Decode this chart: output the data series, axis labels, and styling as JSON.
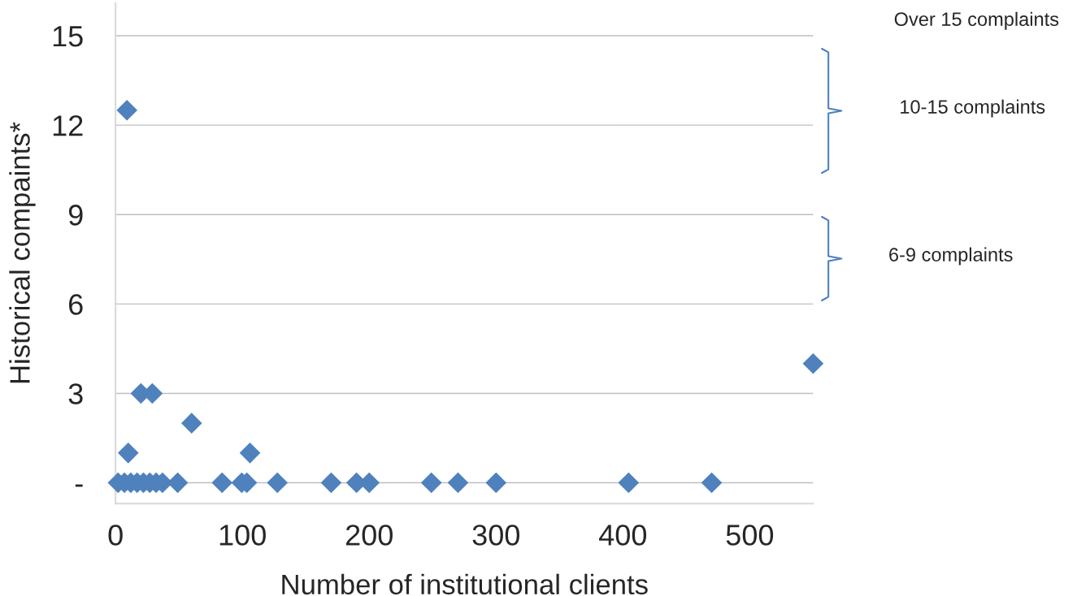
{
  "chart_data": {
    "type": "scatter",
    "xlabel": "Number of institutional clients",
    "ylabel": "Historical compaints*",
    "x": [
      2,
      7,
      12,
      17,
      22,
      27,
      32,
      37,
      49,
      84,
      99.5,
      103.5,
      127.6,
      170,
      190,
      200,
      249,
      270,
      300,
      404.5,
      470,
      9,
      10,
      106,
      60,
      20,
      29,
      550
    ],
    "values": [
      0,
      0,
      0,
      0,
      0,
      0,
      0,
      0,
      0,
      0,
      0,
      0,
      0,
      0,
      0,
      0,
      0,
      0,
      0,
      0,
      0,
      12.5,
      1,
      1,
      2,
      3,
      3,
      4
    ],
    "color": "#4f81bd",
    "marker": "diamond",
    "xlim": [
      0,
      550
    ],
    "xticks": [
      0,
      100,
      200,
      300,
      400,
      500
    ],
    "ylim": [
      -0.7,
      16.1
    ],
    "yticks": [
      {
        "value": 0,
        "label": "-"
      },
      3,
      6,
      9,
      12,
      15
    ],
    "grid": "y",
    "annotations": [
      "Over 15 complaints",
      "10-15 complaints",
      "6-9 complaints"
    ]
  }
}
